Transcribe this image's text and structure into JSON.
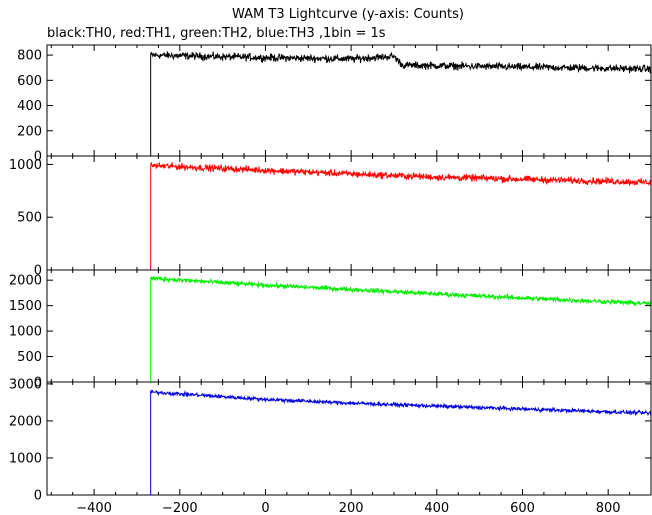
{
  "chart_data": {
    "type": "line",
    "title": "WAM T3 Lightcurve (y-axis: Counts)",
    "subtitle": "black:TH0, red:TH1, green:TH2, blue:TH3 ,1bin = 1s",
    "xlabel": "",
    "xlim": [
      -510,
      900
    ],
    "x_ticks": [
      -400,
      -200,
      0,
      200,
      400,
      600,
      800
    ],
    "grid": false,
    "bin_seconds": 1,
    "panels": [
      {
        "name": "TH0",
        "color": "#000000",
        "ylim": [
          0,
          880
        ],
        "y_ticks": [
          0,
          200,
          400,
          600,
          800
        ],
        "pre_level": 0,
        "onset_x": -268,
        "anchors": [
          [
            -268,
            800
          ],
          [
            0,
            780
          ],
          [
            200,
            770
          ],
          [
            300,
            790
          ],
          [
            320,
            720
          ],
          [
            600,
            705
          ],
          [
            900,
            690
          ]
        ],
        "noise": 32
      },
      {
        "name": "TH1",
        "color": "#ff0000",
        "ylim": [
          0,
          1080
        ],
        "y_ticks": [
          0,
          500,
          1000
        ],
        "pre_level": 0,
        "onset_x": -268,
        "anchors": [
          [
            -268,
            990
          ],
          [
            0,
            945
          ],
          [
            200,
            910
          ],
          [
            400,
            880
          ],
          [
            600,
            860
          ],
          [
            900,
            830
          ]
        ],
        "noise": 35
      },
      {
        "name": "TH2",
        "color": "#00ee00",
        "ylim": [
          0,
          2200
        ],
        "y_ticks": [
          0,
          500,
          1000,
          1500,
          2000
        ],
        "pre_level": 0,
        "onset_x": -268,
        "anchors": [
          [
            -268,
            2040
          ],
          [
            0,
            1900
          ],
          [
            200,
            1820
          ],
          [
            400,
            1730
          ],
          [
            600,
            1650
          ],
          [
            900,
            1540
          ]
        ],
        "noise": 50
      },
      {
        "name": "TH3",
        "color": "#0000dd",
        "ylim": [
          0,
          3050
        ],
        "y_ticks": [
          0,
          1000,
          2000,
          3000
        ],
        "pre_level": 0,
        "onset_x": -268,
        "anchors": [
          [
            -268,
            2780
          ],
          [
            0,
            2580
          ],
          [
            200,
            2480
          ],
          [
            400,
            2400
          ],
          [
            600,
            2320
          ],
          [
            900,
            2210
          ]
        ],
        "noise": 55
      }
    ]
  }
}
